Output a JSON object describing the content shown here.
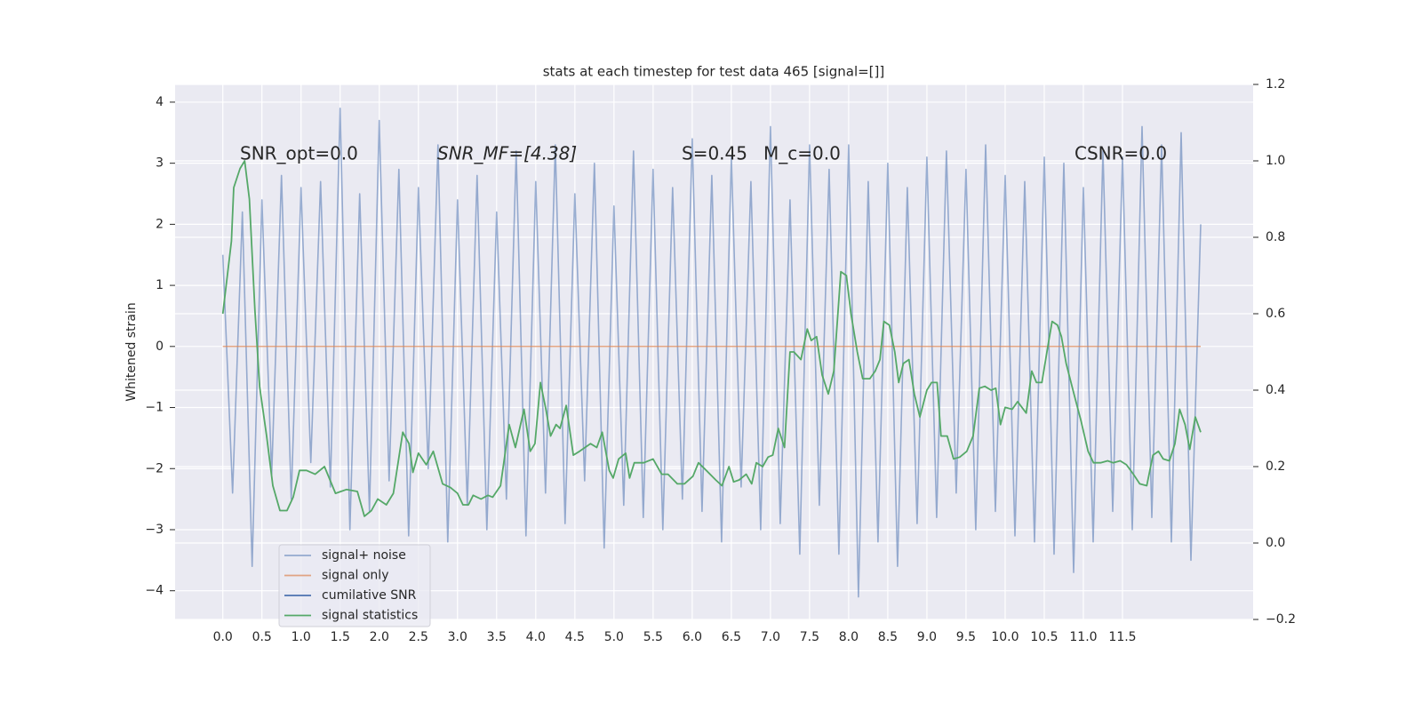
{
  "chart_data": {
    "type": "line",
    "title": "stats at each timestep for test data 465 [signal=[]]",
    "ylabel": "Whitened strain",
    "annotations": [
      "SNR_opt=0.0",
      "SNR_MF=[4.38]",
      "S=0.45",
      "M_c=0.0",
      "CSNR=0.0"
    ],
    "xlim": [
      -0.61,
      13.17
    ],
    "ylim": [
      -4.47,
      4.29
    ],
    "y2lim": [
      -0.2,
      1.2
    ],
    "xticks": [
      {
        "value": 0,
        "label": "0.0"
      },
      0.5,
      {
        "value": 1,
        "label": "1.0"
      },
      1.5,
      {
        "value": 2,
        "label": "2.0"
      },
      2.5,
      {
        "value": 3,
        "label": "3.0"
      },
      3.5,
      {
        "value": 4,
        "label": "4.0"
      },
      4.5,
      {
        "value": 5,
        "label": "5.0"
      },
      5.5,
      {
        "value": 6,
        "label": "6.0"
      },
      6.5,
      {
        "value": 7,
        "label": "7.0"
      },
      7.5,
      {
        "value": 8,
        "label": "8.0"
      },
      8.5,
      {
        "value": 9,
        "label": "9.0"
      },
      9.5,
      {
        "value": 10,
        "label": "10.0"
      },
      10.5,
      {
        "value": 11,
        "label": "11.0"
      },
      11.5
    ],
    "yticks": [
      {
        "value": -4,
        "label": "−4"
      },
      {
        "value": -3,
        "label": "−3"
      },
      {
        "value": -2,
        "label": "−2"
      },
      {
        "value": -1,
        "label": "−1"
      },
      0,
      1,
      2,
      3,
      4
    ],
    "y2ticks": [
      {
        "value": -0.2,
        "label": "−0.2"
      },
      {
        "value": 0,
        "label": "0.0"
      },
      0.2,
      0.4,
      0.6,
      0.8,
      {
        "value": 1,
        "label": "1.0"
      },
      1.2
    ],
    "grid": true,
    "legend": "lower left",
    "series": [
      {
        "name": "signal+ noise",
        "color": "#4c72b0",
        "x": [
          0,
          0.125,
          0.25,
          0.375,
          0.5,
          0.625,
          0.75,
          0.875,
          1,
          1.125,
          1.25,
          1.375,
          1.5,
          1.625,
          1.75,
          1.875,
          2,
          2.125,
          2.25,
          2.375,
          2.5,
          2.625,
          2.75,
          2.875,
          3,
          3.125,
          3.25,
          3.375,
          3.5,
          3.625,
          3.75,
          3.875,
          4,
          4.125,
          4.25,
          4.375,
          4.5,
          4.625,
          4.75,
          4.875,
          5,
          5.125,
          5.25,
          5.375,
          5.5,
          5.625,
          5.75,
          5.875,
          6,
          6.125,
          6.25,
          6.375,
          6.5,
          6.625,
          6.75,
          6.875,
          7,
          7.125,
          7.25,
          7.375,
          7.5,
          7.625,
          7.75,
          7.875,
          8,
          8.125,
          8.25,
          8.375,
          8.5,
          8.625,
          8.75,
          8.875,
          9,
          9.125,
          9.25,
          9.375,
          9.5,
          9.625,
          9.75,
          9.875,
          10,
          10.125,
          10.25,
          10.375,
          10.5,
          10.625,
          10.75,
          10.875,
          11,
          11.125,
          11.25,
          11.375,
          11.5,
          11.625,
          11.75,
          11.875,
          12,
          12.125,
          12.25,
          12.375,
          12.5
        ],
        "values": [
          1.5,
          -2.4,
          2.2,
          -3.6,
          2.4,
          -2.1,
          2.8,
          -2.5,
          2.6,
          -1.9,
          2.7,
          -2.3,
          3.9,
          -3.0,
          2.5,
          -2.7,
          3.7,
          -2.2,
          2.9,
          -3.1,
          2.6,
          -2.0,
          3.3,
          -3.2,
          2.4,
          -2.6,
          2.8,
          -3.0,
          2.2,
          -2.5,
          3.2,
          -3.1,
          2.7,
          -2.4,
          3.3,
          -2.9,
          2.5,
          -2.2,
          3.0,
          -3.3,
          2.3,
          -2.6,
          3.2,
          -2.8,
          2.9,
          -3.0,
          2.6,
          -2.5,
          3.4,
          -2.7,
          2.8,
          -3.2,
          3.1,
          -2.3,
          2.7,
          -3.0,
          3.6,
          -2.9,
          2.4,
          -3.4,
          3.3,
          -2.6,
          2.9,
          -3.4,
          3.3,
          -4.1,
          2.7,
          -3.2,
          3.0,
          -3.6,
          2.6,
          -2.9,
          3.1,
          -2.8,
          3.2,
          -2.4,
          2.9,
          -3.0,
          3.3,
          -2.7,
          2.8,
          -3.1,
          2.7,
          -3.2,
          3.1,
          -3.4,
          3.0,
          -3.7,
          2.6,
          -3.2,
          3.2,
          -2.7,
          3.1,
          -3.0,
          3.6,
          -2.8,
          3.3,
          -3.2,
          3.5,
          -3.5,
          2.0
        ]
      },
      {
        "name": "signal only",
        "color": "#dd8452",
        "x": [
          0,
          12.5
        ],
        "values": [
          0,
          0
        ]
      },
      {
        "name": "cumilative SNR",
        "color": "#4c72b0",
        "x": [],
        "values": []
      },
      {
        "name": "signal statistics",
        "color": "#55a868",
        "axis": "y2",
        "x": [
          0,
          0.11,
          0.14,
          0.22,
          0.28,
          0.34,
          0.41,
          0.47,
          0.56,
          0.64,
          0.73,
          0.82,
          0.9,
          0.98,
          1.07,
          1.18,
          1.3,
          1.44,
          1.58,
          1.72,
          1.81,
          1.9,
          1.98,
          2.09,
          2.18,
          2.3,
          2.38,
          2.43,
          2.5,
          2.6,
          2.69,
          2.81,
          2.91,
          3.0,
          3.07,
          3.14,
          3.2,
          3.3,
          3.39,
          3.45,
          3.55,
          3.66,
          3.74,
          3.85,
          3.93,
          3.99,
          4.06,
          4.13,
          4.19,
          4.26,
          4.31,
          4.39,
          4.48,
          4.56,
          4.7,
          4.78,
          4.85,
          4.94,
          4.99,
          5.06,
          5.15,
          5.2,
          5.26,
          5.38,
          5.5,
          5.61,
          5.69,
          5.81,
          5.9,
          6.01,
          6.08,
          6.18,
          6.3,
          6.38,
          6.47,
          6.53,
          6.6,
          6.69,
          6.76,
          6.82,
          6.9,
          6.97,
          7.03,
          7.1,
          7.18,
          7.25,
          7.3,
          7.39,
          7.47,
          7.52,
          7.59,
          7.66,
          7.74,
          7.81,
          7.9,
          7.97,
          8.03,
          8.11,
          8.18,
          8.27,
          8.34,
          8.4,
          8.45,
          8.52,
          8.59,
          8.64,
          8.7,
          8.77,
          8.84,
          8.91,
          9.0,
          9.06,
          9.13,
          9.18,
          9.26,
          9.34,
          9.42,
          9.51,
          9.59,
          9.67,
          9.74,
          9.82,
          9.88,
          9.94,
          10.0,
          10.09,
          10.16,
          10.27,
          10.34,
          10.4,
          10.47,
          10.55,
          10.6,
          10.67,
          10.72,
          10.78,
          10.88,
          10.97,
          11.06,
          11.13,
          11.22,
          11.31,
          11.38,
          11.47,
          11.55,
          11.64,
          11.72,
          11.81,
          11.89,
          11.96,
          12.02,
          12.1,
          12.17,
          12.23,
          12.3,
          12.36,
          12.43,
          12.5
        ],
        "values": [
          0.6,
          0.79,
          0.93,
          0.98,
          1.0,
          0.9,
          0.61,
          0.41,
          0.28,
          0.15,
          0.085,
          0.085,
          0.12,
          0.19,
          0.19,
          0.18,
          0.2,
          0.13,
          0.14,
          0.135,
          0.07,
          0.085,
          0.115,
          0.1,
          0.13,
          0.29,
          0.26,
          0.185,
          0.235,
          0.205,
          0.24,
          0.155,
          0.145,
          0.13,
          0.1,
          0.1,
          0.125,
          0.115,
          0.125,
          0.12,
          0.15,
          0.31,
          0.25,
          0.35,
          0.24,
          0.26,
          0.42,
          0.35,
          0.28,
          0.31,
          0.3,
          0.36,
          0.23,
          0.24,
          0.26,
          0.25,
          0.29,
          0.19,
          0.17,
          0.22,
          0.235,
          0.17,
          0.21,
          0.21,
          0.22,
          0.18,
          0.18,
          0.155,
          0.155,
          0.175,
          0.21,
          0.19,
          0.165,
          0.15,
          0.2,
          0.16,
          0.165,
          0.18,
          0.155,
          0.21,
          0.2,
          0.225,
          0.23,
          0.3,
          0.25,
          0.5,
          0.5,
          0.48,
          0.56,
          0.53,
          0.54,
          0.44,
          0.39,
          0.45,
          0.71,
          0.7,
          0.6,
          0.5,
          0.43,
          0.43,
          0.45,
          0.48,
          0.58,
          0.57,
          0.5,
          0.42,
          0.47,
          0.48,
          0.39,
          0.33,
          0.4,
          0.42,
          0.42,
          0.28,
          0.28,
          0.22,
          0.225,
          0.24,
          0.28,
          0.405,
          0.41,
          0.4,
          0.405,
          0.31,
          0.355,
          0.35,
          0.37,
          0.34,
          0.45,
          0.42,
          0.42,
          0.52,
          0.58,
          0.57,
          0.54,
          0.47,
          0.39,
          0.32,
          0.24,
          0.21,
          0.21,
          0.215,
          0.21,
          0.215,
          0.205,
          0.18,
          0.155,
          0.15,
          0.23,
          0.24,
          0.22,
          0.215,
          0.26,
          0.35,
          0.31,
          0.245,
          0.33,
          0.29
        ]
      }
    ]
  }
}
